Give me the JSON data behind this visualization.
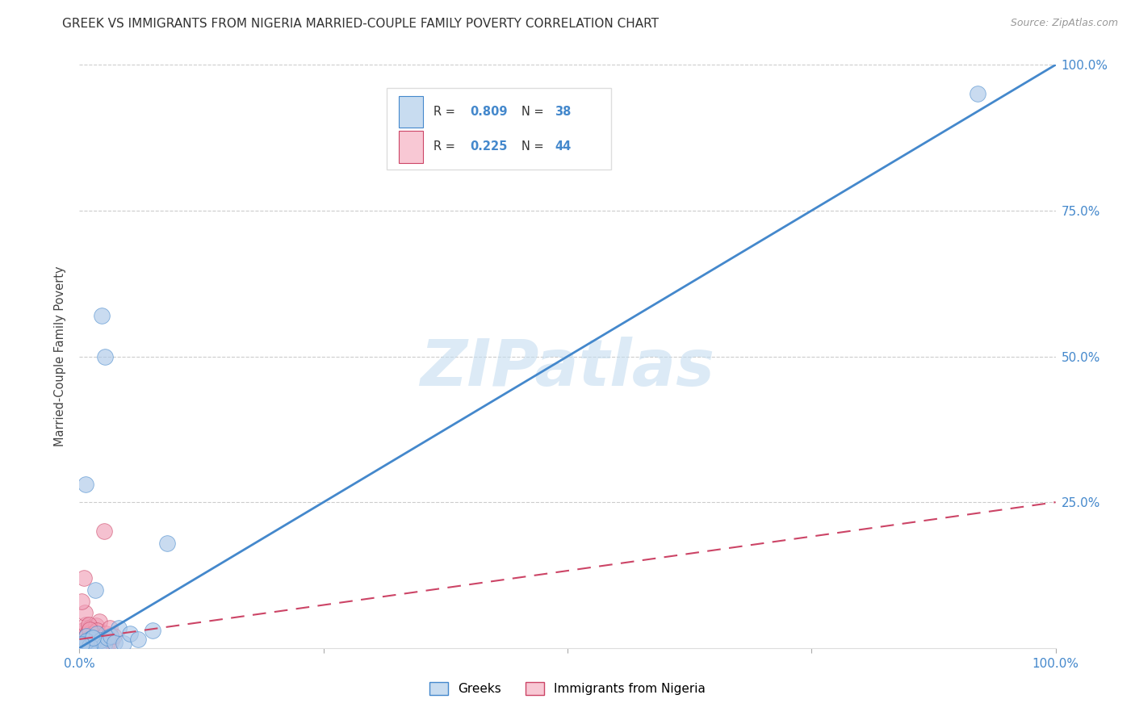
{
  "title": "GREEK VS IMMIGRANTS FROM NIGERIA MARRIED-COUPLE FAMILY POVERTY CORRELATION CHART",
  "source": "Source: ZipAtlas.com",
  "ylabel_label": "Married-Couple Family Poverty",
  "xlim": [
    0,
    100
  ],
  "ylim": [
    0,
    100
  ],
  "greek_R": 0.809,
  "greek_N": 38,
  "nigeria_R": 0.225,
  "nigeria_N": 44,
  "greek_color": "#adc8e8",
  "greek_line_color": "#4488cc",
  "nigeria_color": "#f0a0b8",
  "nigeria_line_color": "#cc4466",
  "legend_box_color_greek": "#c8dcf0",
  "legend_box_color_nigeria": "#f8c8d4",
  "greek_scatter_x": [
    0.3,
    0.5,
    0.8,
    1.0,
    1.2,
    1.5,
    0.4,
    0.7,
    0.9,
    1.3,
    1.7,
    2.0,
    2.3,
    2.6,
    0.2,
    0.6,
    1.1,
    1.4,
    1.8,
    2.2,
    2.5,
    2.9,
    3.2,
    3.6,
    4.0,
    4.5,
    5.2,
    6.0,
    7.5,
    9.0,
    0.15,
    0.45,
    0.75,
    1.05,
    1.35,
    1.65,
    92.0,
    0.25
  ],
  "greek_scatter_y": [
    0.5,
    1.0,
    0.3,
    1.5,
    0.8,
    1.2,
    0.4,
    2.0,
    0.6,
    1.8,
    1.0,
    0.7,
    57.0,
    50.0,
    0.3,
    28.0,
    1.5,
    0.9,
    2.5,
    1.3,
    0.5,
    1.8,
    2.0,
    1.0,
    3.5,
    0.8,
    2.5,
    1.5,
    3.0,
    18.0,
    0.2,
    0.6,
    1.2,
    0.4,
    1.8,
    10.0,
    95.0,
    0.7
  ],
  "nigeria_scatter_x": [
    0.1,
    0.2,
    0.3,
    0.4,
    0.5,
    0.6,
    0.7,
    0.8,
    0.9,
    1.0,
    1.1,
    1.2,
    1.3,
    1.4,
    1.5,
    1.6,
    1.7,
    1.8,
    1.9,
    2.0,
    2.1,
    2.2,
    0.15,
    0.35,
    0.55,
    0.75,
    0.95,
    1.15,
    1.35,
    1.55,
    1.75,
    1.95,
    2.3,
    2.5,
    2.7,
    2.9,
    3.1,
    3.3,
    3.5,
    0.25,
    0.45,
    0.65,
    0.85,
    1.05
  ],
  "nigeria_scatter_y": [
    0.5,
    2.0,
    1.0,
    3.0,
    0.8,
    4.0,
    1.5,
    2.5,
    1.2,
    3.5,
    0.6,
    2.8,
    1.8,
    0.4,
    1.0,
    2.2,
    3.8,
    1.6,
    0.9,
    4.5,
    2.0,
    1.3,
    0.3,
    1.2,
    6.0,
    2.0,
    4.0,
    0.8,
    2.5,
    1.5,
    3.0,
    0.5,
    1.8,
    20.0,
    2.5,
    1.0,
    3.5,
    1.2,
    2.0,
    8.0,
    12.0,
    0.7,
    1.5,
    3.2
  ],
  "greek_line_x": [
    0,
    100
  ],
  "greek_line_y": [
    0,
    100
  ],
  "nigeria_line_x": [
    0,
    100
  ],
  "nigeria_line_y": [
    1.5,
    25
  ],
  "watermark_text": "ZIPatlas",
  "background_color": "#ffffff",
  "grid_color": "#cccccc",
  "tick_color": "#4488cc",
  "title_color": "#333333",
  "source_color": "#999999",
  "legend_label_greek": "Greeks",
  "legend_label_nigeria": "Immigrants from Nigeria"
}
